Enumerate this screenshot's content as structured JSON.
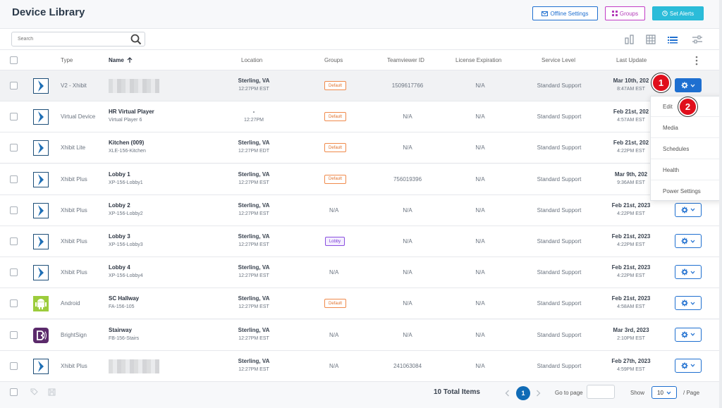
{
  "header": {
    "title": "Device Library",
    "offline_label": "Offline Settings",
    "groups_label": "Groups",
    "alerts_label": "Set Alerts"
  },
  "toolbar": {
    "search_placeholder": "Search"
  },
  "columns": {
    "type": "Type",
    "name": "Name",
    "location": "Location",
    "groups": "Groups",
    "teamviewer": "Teamviewer ID",
    "license": "License Expiration",
    "service": "Service Level",
    "update": "Last Update"
  },
  "rows": [
    {
      "type": "V2 - Xhibit",
      "icon": "xhibit-icon",
      "name": "",
      "sub": "",
      "loc": "Sterling, VA",
      "time": "12:27PM EST",
      "group": "Default",
      "tv": "1509617766",
      "license": "N/A",
      "service": "Standard Support",
      "upd1": "Mar 10th, 202",
      "upd2": "8:47AM EST"
    },
    {
      "type": "Virtual Device",
      "icon": "xhibit-icon",
      "name": "HR Virtual Player",
      "sub": "Virtual Player 6",
      "loc": "-",
      "time": "12:27PM",
      "group": "Default",
      "tv": "N/A",
      "license": "N/A",
      "service": "Standard Support",
      "upd1": "Feb 21st, 202",
      "upd2": "4:57AM EST"
    },
    {
      "type": "Xhibit Lite",
      "icon": "xhibit-icon",
      "name": "Kitchen (009)",
      "sub": "XLE-156-Kitchen",
      "loc": "Sterling, VA",
      "time": "12:27PM EDT",
      "group": "Default",
      "tv": "N/A",
      "license": "N/A",
      "service": "Standard Support",
      "upd1": "Feb 21st, 202",
      "upd2": "4:22PM EST"
    },
    {
      "type": "Xhibit Plus",
      "icon": "xhibit-icon",
      "name": "Lobby 1",
      "sub": "XP-156-Lobby1",
      "loc": "Sterling, VA",
      "time": "12:27PM EST",
      "group": "Default",
      "tv": "756019396",
      "license": "N/A",
      "service": "Standard Support",
      "upd1": "Mar 9th, 202",
      "upd2": "9:36AM EST"
    },
    {
      "type": "Xhibit Plus",
      "icon": "xhibit-icon",
      "name": "Lobby 2",
      "sub": "XP-156-Lobby2",
      "loc": "Sterling, VA",
      "time": "12:27PM EST",
      "group": "N/A",
      "tv": "N/A",
      "license": "N/A",
      "service": "Standard Support",
      "upd1": "Feb 21st, 2023",
      "upd2": "4:22PM EST"
    },
    {
      "type": "Xhibit Plus",
      "icon": "xhibit-icon",
      "name": "Lobby 3",
      "sub": "XP-156-Lobby3",
      "loc": "Sterling, VA",
      "time": "12:27PM EST",
      "group": "Lobby",
      "tv": "N/A",
      "license": "N/A",
      "service": "Standard Support",
      "upd1": "Feb 21st, 2023",
      "upd2": "4:22PM EST"
    },
    {
      "type": "Xhibit Plus",
      "icon": "xhibit-icon",
      "name": "Lobby 4",
      "sub": "XP-156-Lobby4",
      "loc": "Sterling, VA",
      "time": "12:27PM EST",
      "group": "N/A",
      "tv": "N/A",
      "license": "N/A",
      "service": "Standard Support",
      "upd1": "Feb 21st, 2023",
      "upd2": "4:22PM EST"
    },
    {
      "type": "Android",
      "icon": "android-icon",
      "name": "SC Hallway",
      "sub": "FA-156-105",
      "loc": "Sterling, VA",
      "time": "12:27PM EST",
      "group": "Default",
      "tv": "N/A",
      "license": "N/A",
      "service": "Standard Support",
      "upd1": "Feb 21st, 2023",
      "upd2": "4:58AM EST"
    },
    {
      "type": "BrightSign",
      "icon": "brightsign-icon",
      "name": "Stairway",
      "sub": "FB-156-Stairs",
      "loc": "Sterling, VA",
      "time": "12:27PM EST",
      "group": "N/A",
      "tv": "N/A",
      "license": "N/A",
      "service": "Standard Support",
      "upd1": "Mar 3rd, 2023",
      "upd2": "2:10PM EST"
    },
    {
      "type": "Xhibit Plus",
      "icon": "xhibit-icon",
      "name": "",
      "sub": "",
      "loc": "Sterling, VA",
      "time": "12:27PM EST",
      "group": "N/A",
      "tv": "241063084",
      "license": "N/A",
      "service": "Standard Support",
      "upd1": "Feb 27th, 2023",
      "upd2": "4:59PM EST"
    }
  ],
  "menu": {
    "items": [
      "Edit",
      "Media",
      "Schedules",
      "Health",
      "Power Settings"
    ]
  },
  "badges": {
    "one": "1",
    "two": "2"
  },
  "footer": {
    "total": "10 Total Items",
    "page": "1",
    "goto_label": "Go to page",
    "show_label": "Show",
    "per_page": "10",
    "per_page_suffix": "/ Page"
  },
  "colors": {
    "primary": "#1e6fd0",
    "badge": "#e00f1c",
    "default_tag": "#e0702a",
    "lobby_tag": "#7a3fd6"
  }
}
